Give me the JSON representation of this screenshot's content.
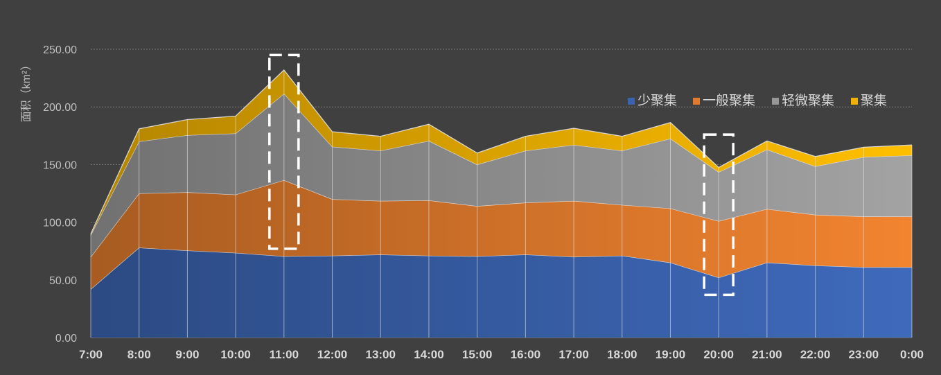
{
  "chart_data": {
    "type": "area",
    "stacked": true,
    "title": "",
    "xlabel": "",
    "ylabel": "面积（km²）",
    "ylim": [
      0,
      250
    ],
    "y_ticks": [
      "0.00",
      "50.00",
      "100.00",
      "150.00",
      "200.00",
      "250.00"
    ],
    "grid": "horizontal dotted",
    "legend_position": "top-right",
    "categories": [
      "7:00",
      "8:00",
      "9:00",
      "10:00",
      "11:00",
      "12:00",
      "13:00",
      "14:00",
      "15:00",
      "16:00",
      "17:00",
      "18:00",
      "19:00",
      "20:00",
      "21:00",
      "22:00",
      "23:00",
      "0:00"
    ],
    "series": [
      {
        "name": "少聚集",
        "color": "#3A62AE",
        "values": [
          42,
          78,
          75.5,
          73.5,
          70.5,
          71,
          72,
          71,
          70.5,
          72,
          70,
          71,
          65,
          52,
          65,
          62.5,
          61,
          61
        ]
      },
      {
        "name": "一般聚集",
        "color": "#E07A2C",
        "values": [
          28,
          47,
          50.5,
          50.5,
          66,
          49,
          46.5,
          48,
          43.5,
          45,
          48.5,
          44,
          47,
          49,
          46.5,
          44,
          44,
          44
        ]
      },
      {
        "name": "轻微聚集",
        "color": "#979797",
        "values": [
          19,
          45,
          49.5,
          53,
          75,
          45.5,
          43.5,
          51.5,
          36,
          45,
          48.5,
          47,
          60.5,
          42.5,
          51.5,
          42,
          51.5,
          53
        ]
      },
      {
        "name": "聚集",
        "color": "#F0B100",
        "values": [
          1,
          11,
          13.5,
          15,
          20.5,
          13,
          12.5,
          14.5,
          10,
          12.5,
          14.5,
          12.5,
          14,
          4,
          7.5,
          8.5,
          8.5,
          9
        ]
      }
    ],
    "annotations": [
      {
        "type": "dashed-box",
        "category": "11:00",
        "y_range": [
          77,
          245
        ]
      },
      {
        "type": "dashed-box",
        "category": "20:00",
        "y_range": [
          37,
          176
        ]
      }
    ]
  }
}
